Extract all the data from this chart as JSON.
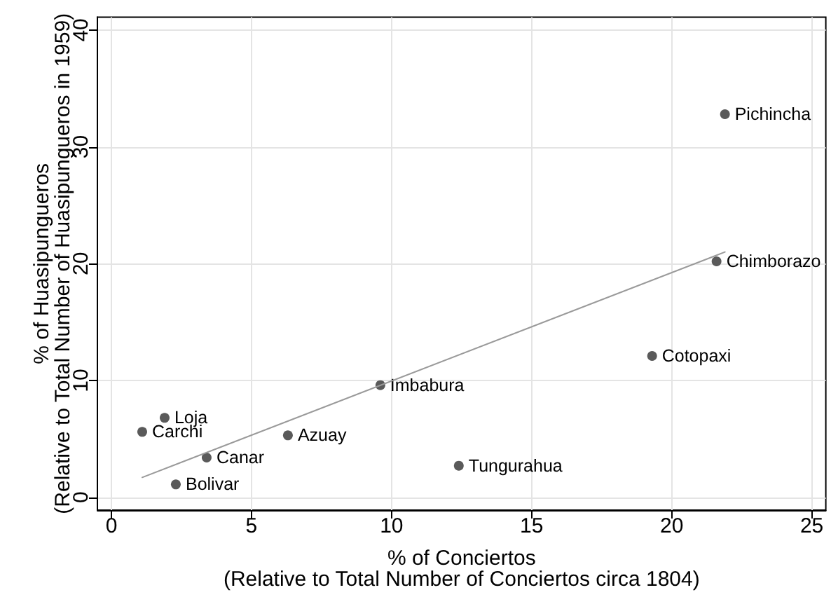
{
  "chart_data": {
    "type": "scatter",
    "xlabel": "% of Conciertos\n(Relative to Total Number of Conciertos circa 1804)",
    "ylabel": "% of Huasipungueros\n(Relative to Total Number of Huasipungueros in 1959)",
    "xlim": [
      -0.5,
      25.5
    ],
    "ylim": [
      -1.1,
      41.1
    ],
    "xticks": [
      0,
      5,
      10,
      15,
      20,
      25
    ],
    "yticks": [
      0,
      10,
      20,
      30,
      40
    ],
    "grid": true,
    "marker": "circle",
    "series": [
      {
        "color": "#5a5a5a",
        "x": [
          21.9,
          21.6,
          19.3,
          12.4,
          9.6,
          6.3,
          1.9,
          1.1,
          3.4,
          2.3
        ],
        "values": [
          32.8,
          20.2,
          12.1,
          2.7,
          9.6,
          5.3,
          6.8,
          5.6,
          3.4,
          1.1
        ]
      },
      {
        "type": "line",
        "color": "#9a9a9a",
        "marker": "none",
        "x": [
          1.1,
          21.9
        ],
        "values": [
          1.7,
          21.0
        ]
      }
    ],
    "annotations": [
      {
        "text": "Pichincha",
        "x": 21.9,
        "y": 32.8
      },
      {
        "text": "Chimborazo",
        "x": 21.6,
        "y": 20.2
      },
      {
        "text": "Cotopaxi",
        "x": 19.3,
        "y": 12.1
      },
      {
        "text": "Tungurahua",
        "x": 12.4,
        "y": 2.7
      },
      {
        "text": "Imbabura",
        "x": 9.6,
        "y": 9.6
      },
      {
        "text": "Azuay",
        "x": 6.3,
        "y": 5.3
      },
      {
        "text": "Loja",
        "x": 1.9,
        "y": 6.8
      },
      {
        "text": "Carchi",
        "x": 1.1,
        "y": 5.6
      },
      {
        "text": "Canar",
        "x": 3.4,
        "y": 3.4
      },
      {
        "text": "Bolivar",
        "x": 2.3,
        "y": 1.1
      }
    ]
  }
}
